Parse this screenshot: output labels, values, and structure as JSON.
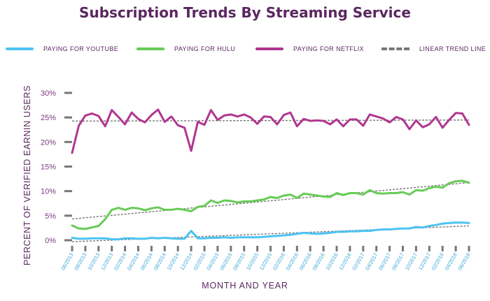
{
  "chart_data": {
    "type": "line",
    "title": "Subscription Trends By Streaming Service",
    "xlabel": "MONTH AND YEAR",
    "ylabel": "PERCENT OF VERIFIED EARNIN USERS",
    "yticks": [
      "0%",
      "5%",
      "10%",
      "15%",
      "20%",
      "25%",
      "30%"
    ],
    "ylim": [
      0,
      30
    ],
    "x": [
      "06/2013",
      "07/2013",
      "08/2013",
      "09/2013",
      "10/2013",
      "11/2013",
      "12/2013",
      "01/2014",
      "02/2014",
      "03/2014",
      "04/2014",
      "05/2014",
      "06/2014",
      "07/2014",
      "08/2014",
      "09/2014",
      "10/2014",
      "11/2014",
      "12/2014",
      "01/2015",
      "02/2015",
      "03/2015",
      "04/2015",
      "05/2015",
      "06/2015",
      "07/2015",
      "08/2015",
      "09/2015",
      "10/2015",
      "11/2015",
      "12/2015",
      "01/2016",
      "02/2016",
      "03/2016",
      "04/2016",
      "05/2016",
      "06/2016",
      "07/2016",
      "08/2016",
      "09/2016",
      "10/2016",
      "11/2016",
      "12/2016",
      "01/2017",
      "02/2017",
      "03/2017",
      "04/2017",
      "05/2017",
      "06/2017",
      "07/2017",
      "08/2017",
      "09/2017",
      "10/2017",
      "11/2017",
      "12/2017",
      "01/2018",
      "02/2018",
      "03/2018",
      "04/2018",
      "05/2018",
      "06/2018"
    ],
    "xtick_labels": [
      "06/2013",
      "08/2013",
      "10/2013",
      "12/2013",
      "02/2014",
      "04/2014",
      "06/2014",
      "08/2014",
      "10/2014",
      "12/2014",
      "02/2015",
      "04/2015",
      "06/2015",
      "08/2015",
      "10/2015",
      "12/2015",
      "02/2016",
      "04/2016",
      "06/2016",
      "08/2016",
      "10/2016",
      "12/2016",
      "02/2017",
      "04/2017",
      "06/2017",
      "08/2017",
      "10/2017",
      "12/2017",
      "02/2018",
      "04/2018",
      "06/2018"
    ],
    "series": [
      {
        "name": "PAYING FOR YOUTUBE",
        "color": "#4cc3f2",
        "values": [
          0.5,
          0.3,
          0.3,
          0.4,
          0.4,
          0.4,
          0.2,
          0.2,
          0.4,
          0.4,
          0.3,
          0.3,
          0.5,
          0.4,
          0.5,
          0.4,
          0.3,
          0.3,
          1.9,
          0.4,
          0.4,
          0.5,
          0.5,
          0.6,
          0.5,
          0.6,
          0.6,
          0.6,
          0.6,
          0.7,
          0.8,
          0.9,
          1.0,
          1.1,
          1.3,
          1.5,
          1.4,
          1.3,
          1.4,
          1.5,
          1.7,
          1.7,
          1.8,
          1.8,
          1.9,
          1.9,
          2.1,
          2.2,
          2.2,
          2.3,
          2.4,
          2.4,
          2.7,
          2.6,
          2.9,
          3.1,
          3.4,
          3.5,
          3.6,
          3.6,
          3.5
        ]
      },
      {
        "name": "PAYING FOR HULU",
        "color": "#66cc55",
        "values": [
          3.0,
          2.4,
          2.3,
          2.6,
          2.9,
          4.3,
          6.2,
          6.6,
          6.2,
          6.6,
          6.5,
          6.1,
          6.5,
          6.7,
          6.2,
          6.2,
          6.4,
          6.2,
          5.9,
          6.8,
          7.0,
          8.1,
          7.6,
          8.1,
          8.0,
          7.7,
          7.9,
          7.9,
          8.1,
          8.3,
          8.8,
          8.6,
          9.1,
          9.3,
          8.6,
          9.5,
          9.3,
          9.1,
          8.9,
          8.8,
          9.6,
          9.2,
          9.6,
          9.6,
          9.3,
          10.2,
          9.6,
          9.5,
          9.6,
          9.6,
          9.8,
          9.3,
          10.2,
          10.1,
          10.6,
          10.9,
          10.7,
          11.6,
          12.0,
          12.1,
          11.7
        ]
      },
      {
        "name": "PAYING FOR NETFLIX",
        "color": "#b0378f",
        "values": [
          17.8,
          23.3,
          25.4,
          25.8,
          25.3,
          23.2,
          26.5,
          25.1,
          23.6,
          26.0,
          24.7,
          24.0,
          25.5,
          26.6,
          24.1,
          25.2,
          23.4,
          22.9,
          18.2,
          24.1,
          23.5,
          26.5,
          24.5,
          25.4,
          25.6,
          25.2,
          25.6,
          25.0,
          23.7,
          25.2,
          25.1,
          23.6,
          25.5,
          26.0,
          23.2,
          24.7,
          24.3,
          24.4,
          24.3,
          23.6,
          24.6,
          23.2,
          24.6,
          24.6,
          23.3,
          25.6,
          25.2,
          24.8,
          24.0,
          25.1,
          24.6,
          22.6,
          24.4,
          23.0,
          23.6,
          25.1,
          22.9,
          24.5,
          25.9,
          25.8,
          23.5
        ]
      },
      {
        "name": "LINEAR TREND LINE",
        "color": "#777777"
      }
    ],
    "grid": false,
    "legend": "top"
  }
}
